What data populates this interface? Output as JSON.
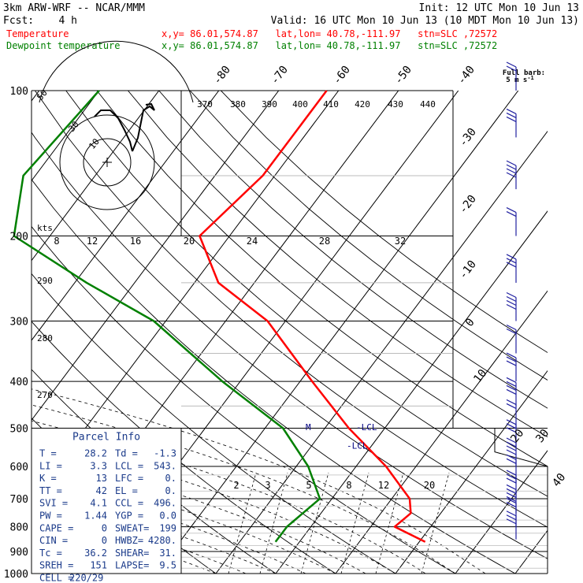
{
  "header": {
    "title": "3km ARW-WRF -- NCAR/MMM",
    "init": "Init: 12 UTC Mon 10 Jun 13",
    "fcst": "Fcst:    4 h",
    "valid": "Valid: 16 UTC Mon 10 Jun 13 (10 MDT Mon 10 Jun 13)"
  },
  "legend": [
    {
      "name": "Temperature",
      "loc": "x,y= 86.01,574.87   lat,lon= 40.78,-111.97   stn=SLC ,72572",
      "color": "#ff0000"
    },
    {
      "name": "Dewpoint temperature",
      "loc": "x,y= 86.01,574.87   lat,lon= 40.78,-111.97   stn=SLC ,72572",
      "color": "#008000"
    }
  ],
  "wind_key": {
    "line1": "Full barb:",
    "line2": "5 m s",
    "sup": "-1"
  },
  "hodograph_labels": {
    "kts": "kts",
    "ring_labels": [
      "50",
      "30",
      "10"
    ]
  },
  "parcel_info": {
    "title": "Parcel Info",
    "rows": [
      [
        "T  =",
        "28.2",
        "Td =",
        "-1.3"
      ],
      [
        "LI =",
        "3.3",
        "LCL =",
        "543."
      ],
      [
        "K  =",
        "13",
        "LFC =",
        "0."
      ],
      [
        "TT =",
        "42",
        "EL =",
        "0."
      ],
      [
        "SVI =",
        "4.1",
        "CCL =",
        "496."
      ],
      [
        "PW =",
        "1.44",
        "YGP =",
        "0.0"
      ],
      [
        "CAPE =",
        "0",
        "SWEAT=",
        "199"
      ],
      [
        "CIN =",
        "0",
        "HWBZ=",
        "4280."
      ],
      [
        "Tc =",
        "36.2",
        "SHEAR=",
        "31."
      ],
      [
        "SREH =",
        "151",
        "LAPSE=",
        "9.5"
      ],
      [
        "CELL =",
        "220/29",
        "",
        ""
      ]
    ]
  },
  "level_labels": {
    "lcl": "-LCL",
    "lcl2": "-LCL",
    "m": "M"
  },
  "colors": {
    "temperature": "#ff0000",
    "dewpoint": "#008000",
    "isotherm": "#000000",
    "grid": "#000000",
    "panel": "#1a3a8a",
    "wind": "#2020a0",
    "accent_text": "#000080"
  },
  "chart_data": {
    "type": "line",
    "title": "",
    "ylabel_ticks": [
      100,
      200,
      300,
      400,
      500,
      600,
      700,
      800,
      900,
      1000
    ],
    "isotherm_labels": [
      "-80",
      "-70",
      "-60",
      "-50",
      "-40",
      "-30",
      "-20",
      "-10",
      "0",
      "10",
      "20",
      "30",
      "40"
    ],
    "mixing_ratio_labels": [
      "2",
      "3",
      "5",
      "8",
      "12",
      "20"
    ],
    "theta_e_labels": [
      "370",
      "380",
      "390",
      "400",
      "410",
      "420",
      "430",
      "440"
    ],
    "theta_labels": [
      "290",
      "280",
      "270"
    ],
    "hodo_speed_labels": [
      "8",
      "12",
      "16",
      "20",
      "24",
      "28",
      "32"
    ],
    "series": [
      {
        "name": "Temperature",
        "points": [
          [
            100,
            -52
          ],
          [
            150,
            -52
          ],
          [
            200,
            -55
          ],
          [
            250,
            -46
          ],
          [
            300,
            -33
          ],
          [
            400,
            -18
          ],
          [
            500,
            -6
          ],
          [
            600,
            5
          ],
          [
            700,
            13
          ],
          [
            750,
            15
          ],
          [
            800,
            14
          ],
          [
            860,
            21
          ]
        ]
      },
      {
        "name": "Dewpoint temperature",
        "points": [
          [
            100,
            -90
          ],
          [
            150,
            -92
          ],
          [
            200,
            -86
          ],
          [
            250,
            -68
          ],
          [
            300,
            -52
          ],
          [
            400,
            -33
          ],
          [
            500,
            -17
          ],
          [
            600,
            -8
          ],
          [
            700,
            -2
          ],
          [
            800,
            -4
          ],
          [
            860,
            -4
          ]
        ]
      }
    ],
    "wind_barbs_p": [
      100,
      125,
      160,
      200,
      250,
      300,
      350,
      400,
      450,
      500,
      550,
      600,
      650,
      700,
      750,
      800,
      850
    ]
  }
}
